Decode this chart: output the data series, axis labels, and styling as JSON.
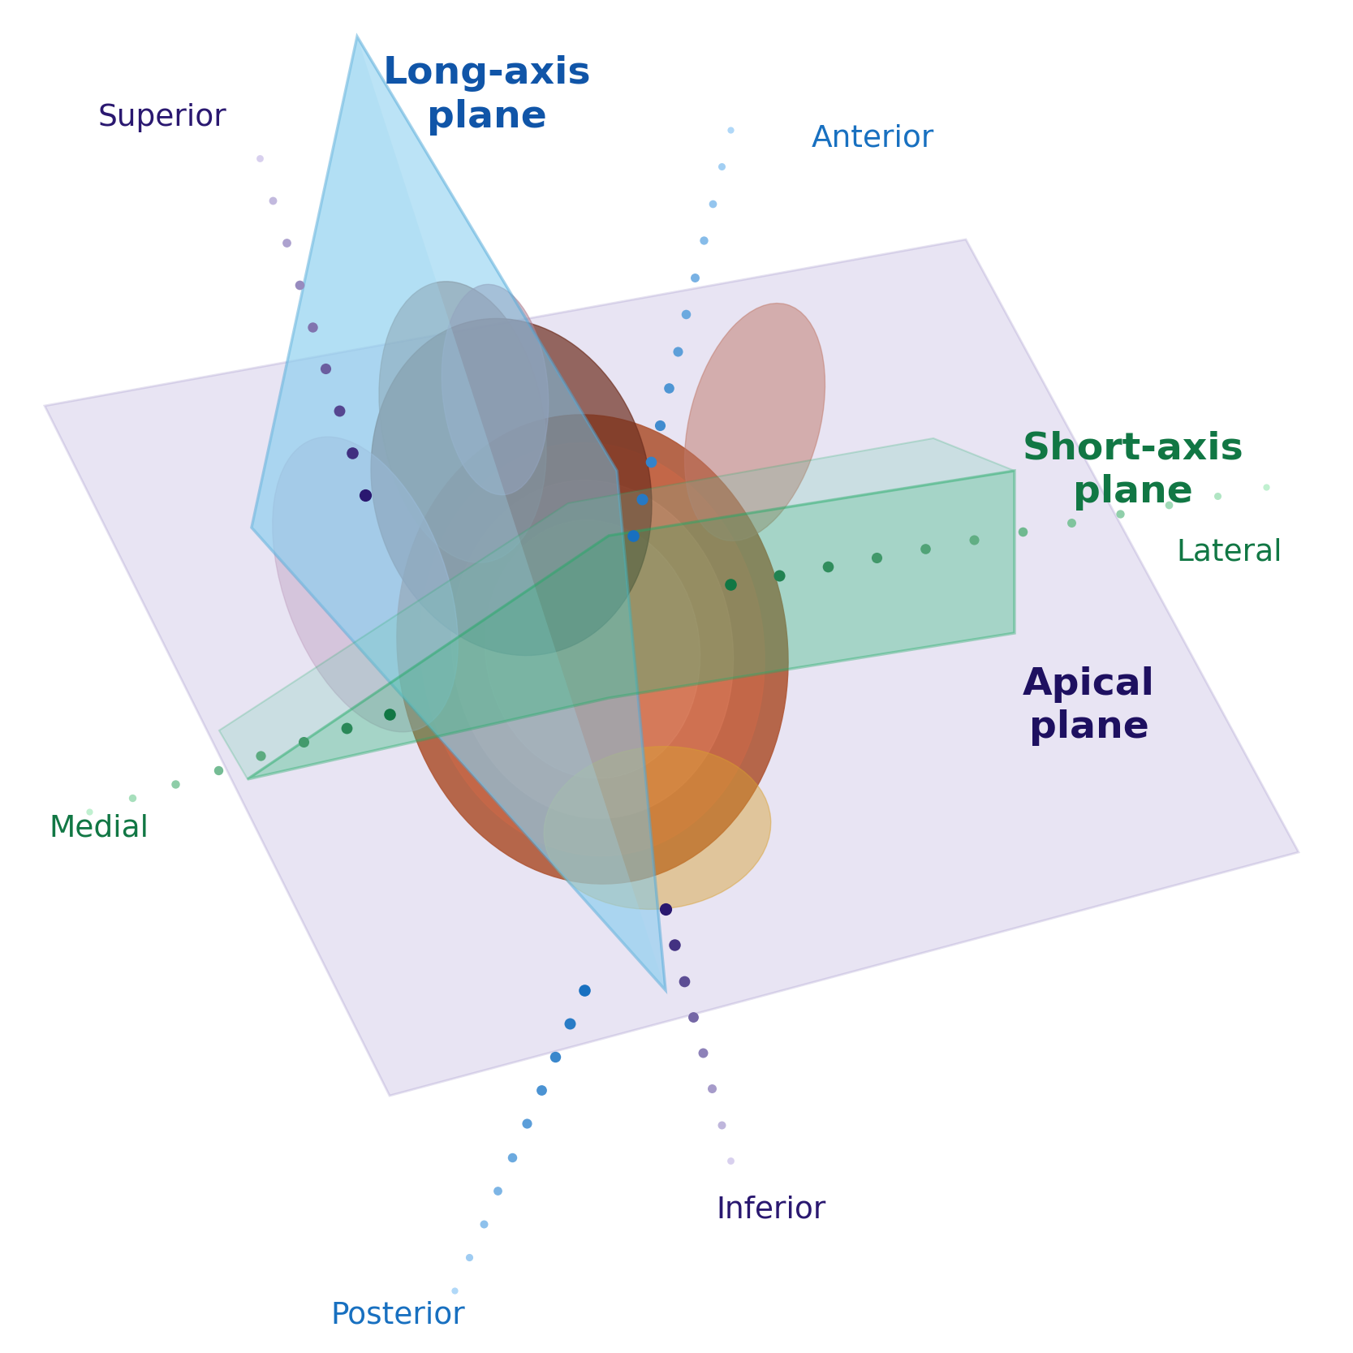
{
  "bg_color": "#ffffff",
  "long_axis_label": "Long-axis\nplane",
  "long_axis_label_color": "#1055a8",
  "short_axis_label": "Short-axis\nplane",
  "short_axis_label_color": "#117744",
  "apical_label": "Apical\nplane",
  "apical_label_color": "#1e1060",
  "superior_color": "#2a1870",
  "inferior_color": "#2a1870",
  "anterior_color": "#1870c0",
  "posterior_color": "#1870c0",
  "medial_color": "#117744",
  "lateral_color": "#117744",
  "apical_plane_fill": "#9988cc",
  "apical_plane_alpha": 0.22,
  "long_axis_fill": "#78c8ee",
  "long_axis_alpha": 0.52,
  "short_axis_fill": "#40bb88",
  "short_axis_alpha": 0.38,
  "label_fontsize": 34,
  "dir_fontsize": 27,
  "sup_dot_start": "#d8d0ee",
  "sup_dot_end": "#2a1870",
  "ant_dot_start": "#b0d8f8",
  "ant_dot_end": "#1870c0",
  "med_dot_start": "#c0f0d0",
  "med_dot_end": "#117744"
}
